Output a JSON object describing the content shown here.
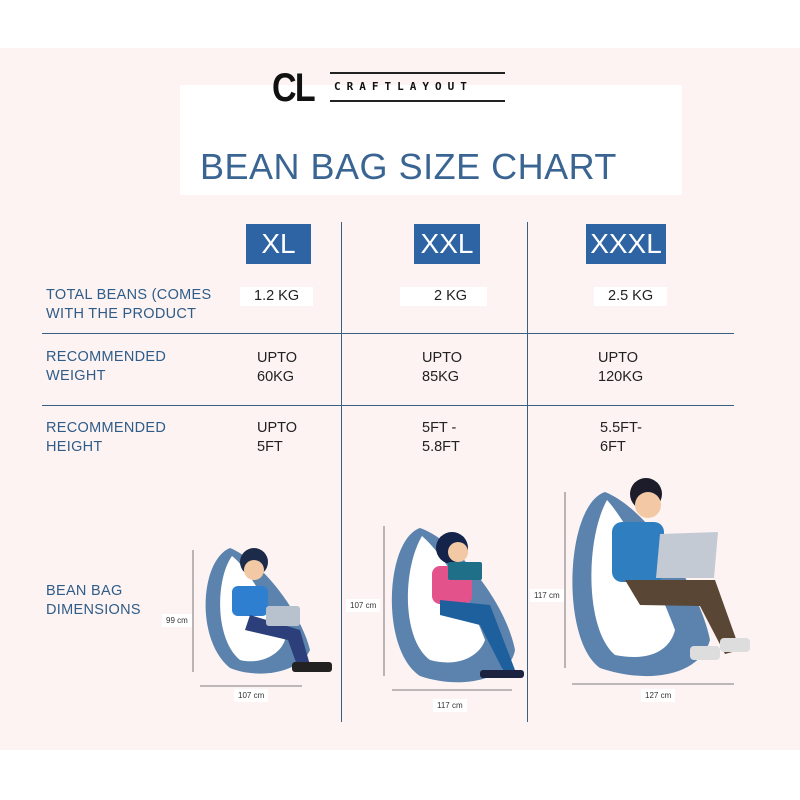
{
  "brand": {
    "logo_mark": "CL",
    "logo_word": "CRAFTLAYOUT"
  },
  "title": "BEAN BAG SIZE CHART",
  "sizes": [
    "XL",
    "XXL",
    "XXXL"
  ],
  "rows": [
    {
      "label_lines": [
        "TOTAL BEANS (COMES",
        "WITH THE PRODUCT"
      ],
      "values": [
        [
          "1.2 KG"
        ],
        [
          "2 KG"
        ],
        [
          "2.5 KG"
        ]
      ]
    },
    {
      "label_lines": [
        "RECOMMENDED",
        "WEIGHT"
      ],
      "values": [
        [
          "UPTO",
          "60KG"
        ],
        [
          "UPTO",
          "85KG"
        ],
        [
          "UPTO",
          "120KG"
        ]
      ]
    },
    {
      "label_lines": [
        "RECOMMENDED",
        "HEIGHT"
      ],
      "values": [
        [
          "UPTO",
          "5FT"
        ],
        [
          "5FT -",
          "5.8FT"
        ],
        [
          "5.5FT-",
          "6FT"
        ]
      ]
    },
    {
      "label_lines": [
        "BEAN BAG",
        "DIMENSIONS"
      ]
    }
  ],
  "dimensions": [
    {
      "height": "99 cm",
      "width": "107 cm"
    },
    {
      "height": "107 cm",
      "width": "117 cm"
    },
    {
      "height": "117 cm",
      "width": "127 cm"
    }
  ],
  "colors": {
    "accent": "#2e64a3",
    "text": "#2f5c88",
    "panel": "#fcf3f2",
    "beanbag": "#5b83ad"
  }
}
